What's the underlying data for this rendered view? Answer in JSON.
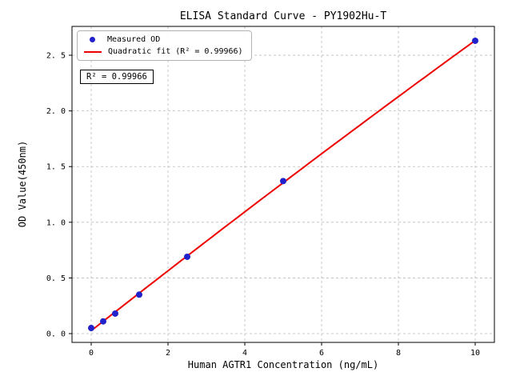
{
  "chart_data": {
    "type": "scatter",
    "title": "ELISA Standard Curve - PY1902Hu-T",
    "xlabel": "Human AGTR1 Concentration (ng/mL)",
    "ylabel": "OD Value(450nm)",
    "xlim": [
      -0.5,
      10.5
    ],
    "ylim": [
      -0.079,
      2.759
    ],
    "x_ticks": {
      "values": [
        0,
        2,
        4,
        6,
        8,
        10
      ],
      "labels": [
        "0",
        "2",
        "4",
        "6",
        "8",
        "10"
      ]
    },
    "y_ticks": {
      "values": [
        0.0,
        0.5,
        1.0,
        1.5,
        2.0,
        2.5
      ],
      "labels": [
        "0. 0",
        "0. 5",
        "1. 0",
        "1. 5",
        "2. 0",
        "2. 5"
      ]
    },
    "grid": true,
    "legend_position": "upper-left",
    "series": [
      {
        "name": "Measured OD",
        "type": "scatter",
        "color": "#2222cc",
        "x": [
          0,
          0.3125,
          0.625,
          1.25,
          2.5,
          5,
          10
        ],
        "y": [
          0.05,
          0.11,
          0.18,
          0.35,
          0.69,
          1.37,
          2.63
        ]
      },
      {
        "name": "Quadratic fit (R² = 0.99966)",
        "type": "quadratic-fit",
        "color": "#ee0000",
        "x_range": [
          0,
          10
        ]
      }
    ],
    "annotation": {
      "text": "R² = 0.99966"
    },
    "r_squared": 0.99966,
    "colors": {
      "scatter": "#2222cc",
      "fit_line": "#ee0000",
      "grid": "#bbbbbb",
      "axis": "#000000",
      "background": "#ffffff"
    }
  }
}
